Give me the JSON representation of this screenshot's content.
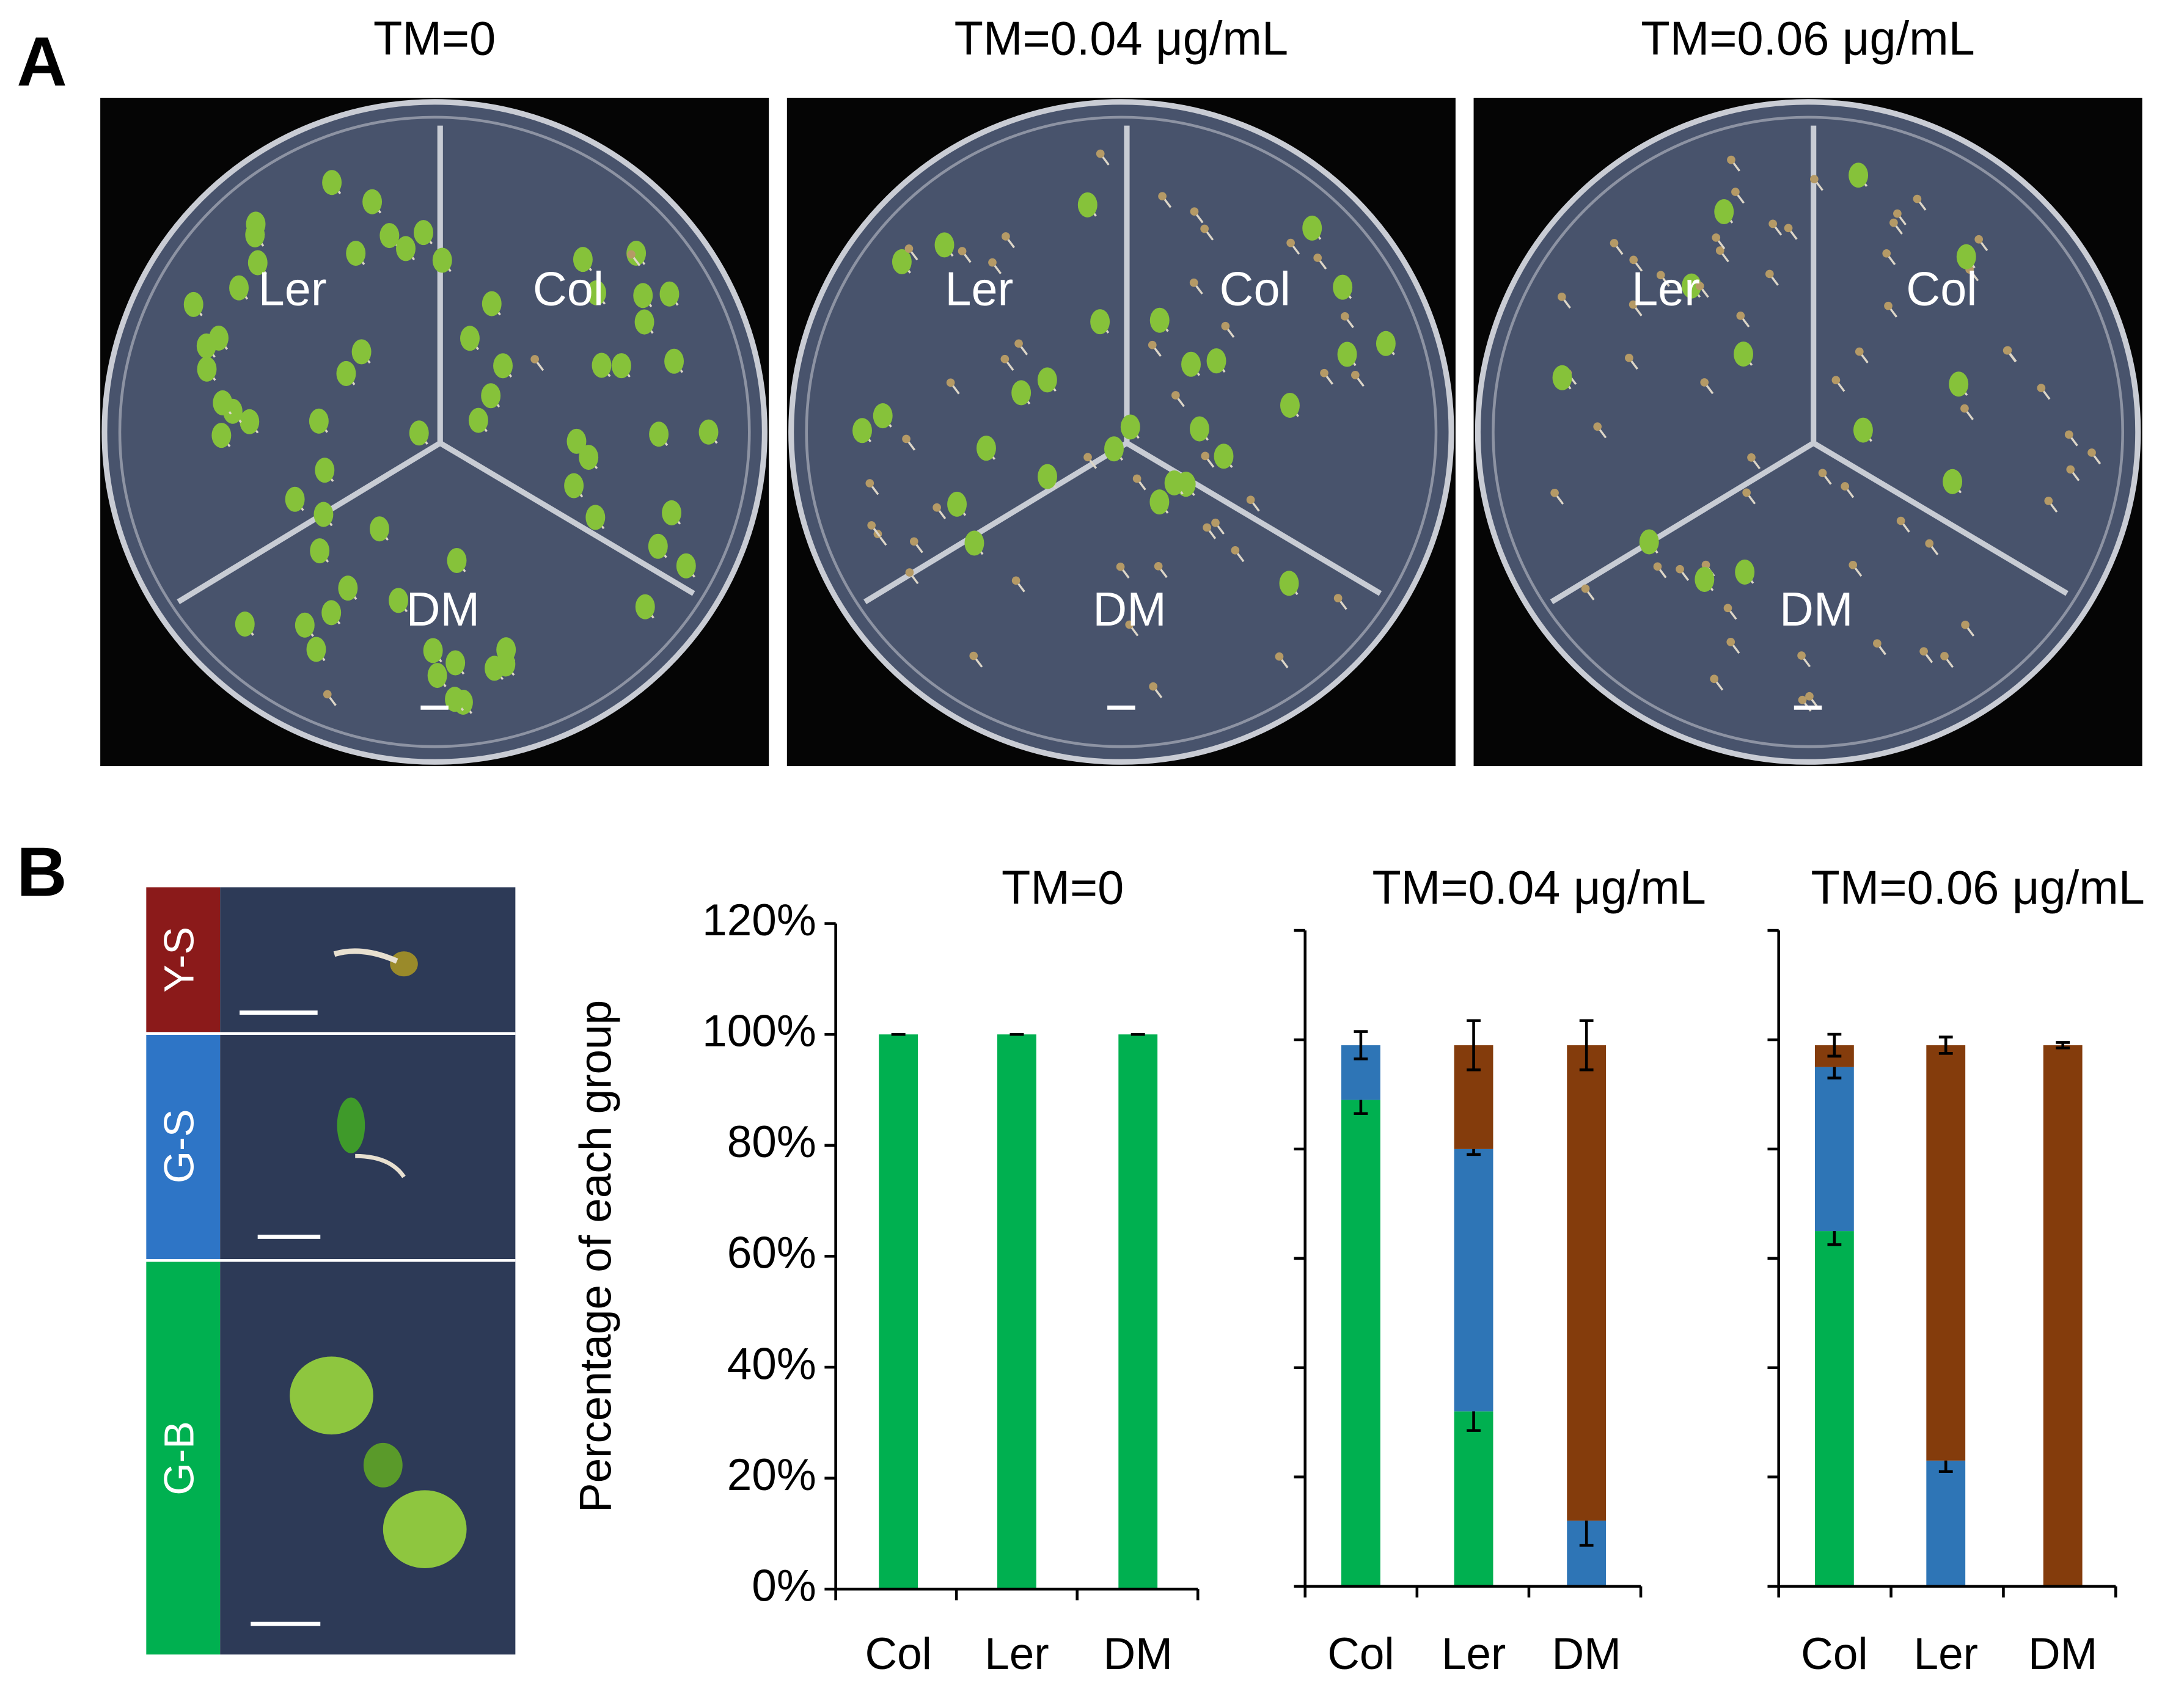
{
  "panel_labels": [
    "A",
    "B"
  ],
  "panel_a": {
    "plates": [
      {
        "title": "TM=0",
        "labels": [
          "Ler",
          "Col",
          "DM"
        ]
      },
      {
        "title": "TM=0.04 μg/mL",
        "labels": [
          "Ler",
          "Col",
          "DM"
        ]
      },
      {
        "title": "TM=0.06 μg/mL",
        "labels": [
          "Ler",
          "Col",
          "DM"
        ]
      }
    ]
  },
  "chart_data": [
    {
      "type": "bar",
      "stacked": true,
      "title": "TM=0",
      "ylabel": "Percentage of each group",
      "categories": [
        "Col",
        "Ler",
        "DM"
      ],
      "series": [
        {
          "name": "G-B",
          "color": "#00b050",
          "values": [
            100,
            100,
            100
          ],
          "errors": [
            0,
            0,
            0
          ]
        },
        {
          "name": "G-S",
          "color": "#2e75b6",
          "values": [
            0,
            0,
            0
          ],
          "errors": [
            null,
            null,
            null
          ]
        },
        {
          "name": "Y-S",
          "color": "#843c0c",
          "values": [
            0,
            0,
            0
          ],
          "errors": [
            null,
            null,
            null
          ]
        }
      ],
      "ylim": [
        0,
        120
      ],
      "yticks": [
        {
          "value": 0,
          "label": "0%"
        },
        {
          "value": 20,
          "label": "20%"
        },
        {
          "value": 40,
          "label": "40%"
        },
        {
          "value": 60,
          "label": "60%"
        },
        {
          "value": 80,
          "label": "80%"
        },
        {
          "value": 100,
          "label": "100%"
        },
        {
          "value": 120,
          "label": "120%"
        }
      ],
      "ytick_labels": true
    },
    {
      "type": "bar",
      "stacked": true,
      "title": "TM=0.04 μg/mL",
      "categories": [
        "Col",
        "Ler",
        "DM"
      ],
      "series": [
        {
          "name": "G-B",
          "color": "#00b050",
          "values": [
            89,
            32,
            0
          ],
          "errors": [
            2.5,
            3.5,
            null
          ]
        },
        {
          "name": "G-S",
          "color": "#2e75b6",
          "values": [
            10,
            48,
            12
          ],
          "errors": [
            2.5,
            1,
            4.5
          ]
        },
        {
          "name": "Y-S",
          "color": "#843c0c",
          "values": [
            0,
            19,
            87
          ],
          "errors": [
            null,
            4.5,
            4.5
          ]
        }
      ],
      "ylim": [
        0,
        120
      ],
      "yticks": [
        0,
        20,
        40,
        60,
        80,
        100,
        120
      ],
      "ytick_labels": false
    },
    {
      "type": "bar",
      "stacked": true,
      "title": "TM=0.06 μg/mL",
      "categories": [
        "Col",
        "Ler",
        "DM"
      ],
      "series": [
        {
          "name": "G-B",
          "color": "#00b050",
          "values": [
            65,
            0,
            0
          ],
          "errors": [
            2.5,
            null,
            null
          ]
        },
        {
          "name": "G-S",
          "color": "#2e75b6",
          "values": [
            30,
            23,
            0
          ],
          "errors": [
            2,
            2,
            null
          ]
        },
        {
          "name": "Y-S",
          "color": "#843c0c",
          "values": [
            4,
            76,
            99
          ],
          "errors": [
            2,
            1.5,
            0.5
          ]
        }
      ],
      "ylim": [
        0,
        120
      ],
      "yticks": [
        0,
        20,
        40,
        60,
        80,
        100,
        120
      ],
      "ytick_labels": false
    }
  ]
}
